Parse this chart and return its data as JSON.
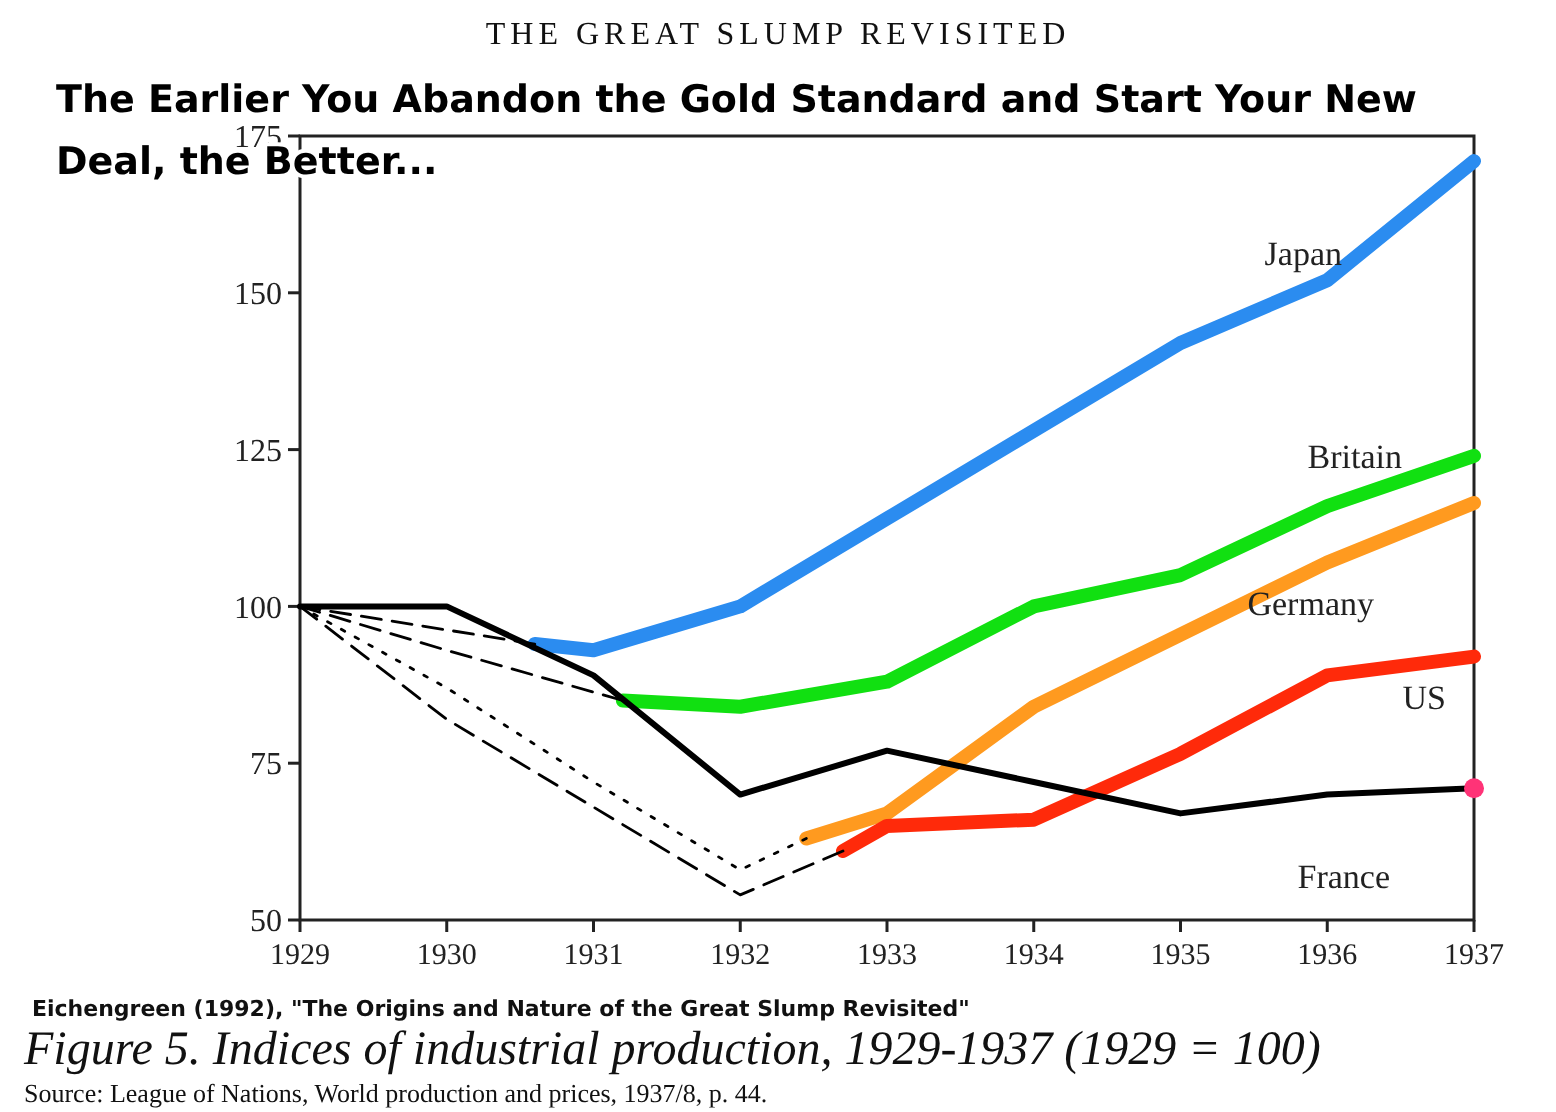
{
  "chart_data": {
    "type": "line",
    "title": "The Earlier You Abandon the Gold Standard and Start Your New Deal, the Better...",
    "annotations": [
      "THE GREAT SLUMP REVISITED",
      "Eichengreen (1992), \"The Origins and Nature of the Great Slump Revisited\"",
      "Figure 5. Indices of industrial production, 1929-1937 (1929 = 100)",
      "Source: League of Nations, World production and prices, 1937/8, p. 44."
    ],
    "xlim": [
      1929,
      1937
    ],
    "xticks": [
      1929,
      1930,
      1931,
      1932,
      1933,
      1934,
      1935,
      1936,
      1937
    ],
    "ylim": [
      50,
      175
    ],
    "yticks": [
      50,
      75,
      100,
      125,
      150,
      175
    ],
    "grid": false,
    "marker": "none",
    "series": [
      {
        "color": "#000000",
        "line_style": "dashed",
        "x": [
          1929,
          1930.6
        ],
        "values": [
          100,
          94
        ]
      },
      {
        "color": "#000000",
        "line_style": "dashed",
        "x": [
          1929,
          1930,
          1931.2
        ],
        "values": [
          100,
          93,
          85
        ]
      },
      {
        "color": "#000000",
        "line_style": "dotted",
        "x": [
          1929,
          1930,
          1931,
          1932,
          1932.45
        ],
        "values": [
          100,
          87,
          72,
          58,
          63
        ]
      },
      {
        "color": "#000000",
        "line_style": "dashed",
        "x": [
          1929,
          1930,
          1931,
          1932,
          1932.7
        ],
        "values": [
          100,
          82,
          68,
          54,
          61
        ]
      },
      {
        "name": "Japan",
        "color": "#2b8cf0",
        "x": [
          1930.6,
          1931,
          1932,
          1933,
          1934,
          1935,
          1936,
          1937
        ],
        "values": [
          94,
          93,
          100,
          114,
          128,
          142,
          152,
          171
        ]
      },
      {
        "name": "Britain",
        "color": "#11e011",
        "x": [
          1931.2,
          1932,
          1933,
          1934,
          1935,
          1936,
          1937
        ],
        "values": [
          85,
          84,
          88,
          100,
          105,
          116,
          124
        ]
      },
      {
        "name": "Germany",
        "color": "#ff9a1f",
        "x": [
          1932.45,
          1933,
          1934,
          1935,
          1936,
          1937
        ],
        "values": [
          63,
          67,
          84,
          95.5,
          107,
          116.5
        ]
      },
      {
        "name": "US",
        "color": "#ff2a0a",
        "x": [
          1932.7,
          1933,
          1934,
          1935,
          1936,
          1937
        ],
        "values": [
          61,
          65,
          66,
          76.5,
          89,
          92
        ]
      },
      {
        "name": "France",
        "color": "#000000",
        "x": [
          1929,
          1930,
          1931,
          1932,
          1933,
          1934,
          1935,
          1936,
          1937
        ],
        "values": [
          100,
          100,
          89,
          70,
          77,
          72,
          67,
          70,
          71
        ]
      },
      {
        "type": "scatter",
        "marker": "circle",
        "color": "#ff3377",
        "x": [
          1937
        ],
        "values": [
          71
        ]
      }
    ]
  }
}
